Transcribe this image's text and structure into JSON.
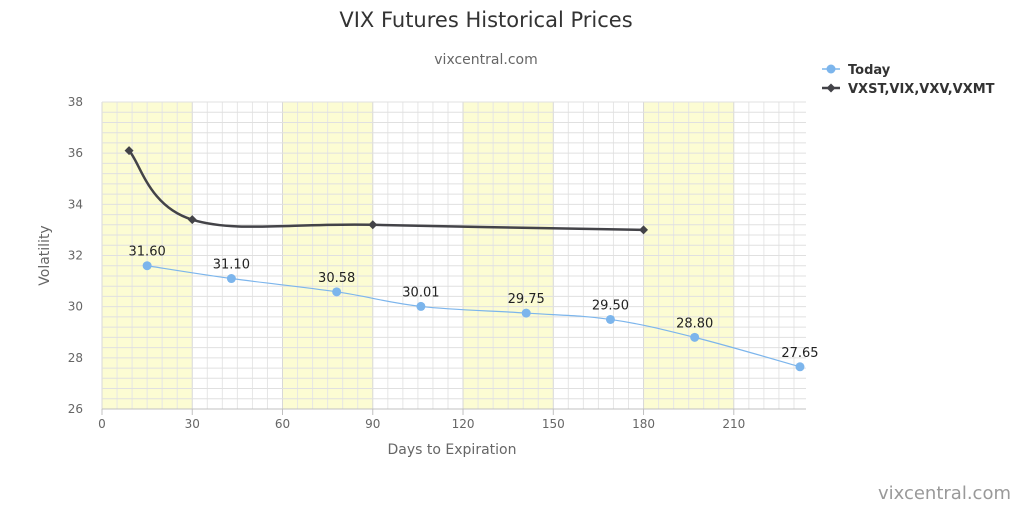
{
  "chart_data": {
    "type": "line",
    "title": "VIX Futures Historical Prices",
    "subtitle": "vixcentral.com",
    "xlabel": "Days to Expiration",
    "ylabel": "Volatility",
    "xlim": [
      0,
      234
    ],
    "ylim": [
      26,
      38
    ],
    "xticks": [
      0,
      30,
      60,
      90,
      120,
      150,
      180,
      210
    ],
    "yticks": [
      26,
      28,
      30,
      32,
      34,
      36,
      38
    ],
    "grid": true,
    "legend_position": "top-right",
    "bands": [
      [
        0,
        30
      ],
      [
        60,
        90
      ],
      [
        120,
        150
      ],
      [
        180,
        210
      ]
    ],
    "series": [
      {
        "name": "Today",
        "color": "#7cb5ec",
        "marker": "circle",
        "x": [
          15,
          43,
          78,
          106,
          141,
          169,
          197,
          232
        ],
        "y": [
          31.6,
          31.1,
          30.58,
          30.01,
          29.75,
          29.5,
          28.8,
          27.65
        ],
        "labels": [
          "31.60",
          "31.10",
          "30.58",
          "30.01",
          "29.75",
          "29.50",
          "28.80",
          "27.65"
        ]
      },
      {
        "name": "VXST,VIX,VXV,VXMT",
        "color": "#434348",
        "marker": "diamond",
        "x": [
          9,
          30,
          90,
          180
        ],
        "y": [
          36.1,
          33.4,
          33.2,
          33.0
        ]
      }
    ]
  },
  "credit": "vixcentral.com"
}
